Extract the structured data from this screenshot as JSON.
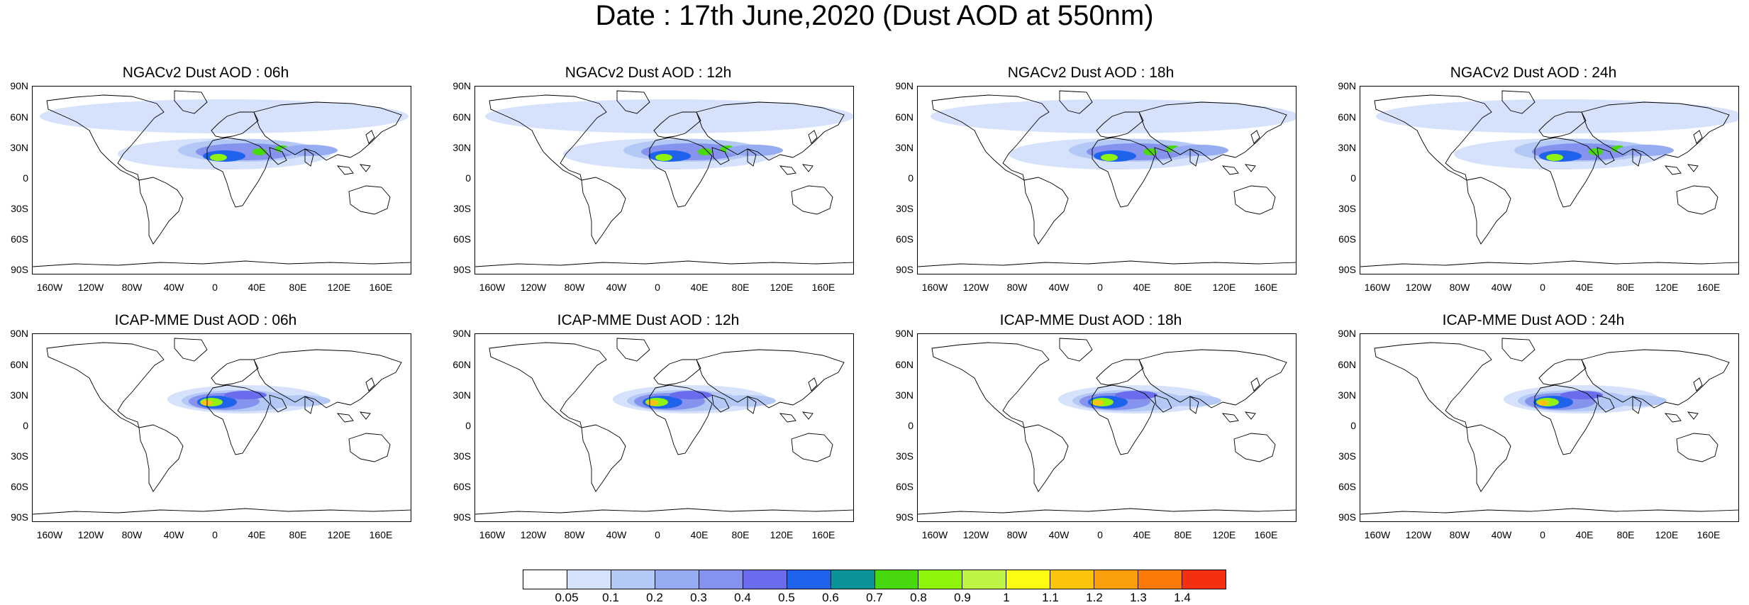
{
  "title": "Date : 17th June,2020 (Dust AOD at 550nm)",
  "panels": [
    {
      "title": "NGACv2 Dust AOD : 06h",
      "model": "NGACv2",
      "forecast_hour": "06h"
    },
    {
      "title": "NGACv2 Dust AOD : 12h",
      "model": "NGACv2",
      "forecast_hour": "12h"
    },
    {
      "title": "NGACv2 Dust AOD : 18h",
      "model": "NGACv2",
      "forecast_hour": "18h"
    },
    {
      "title": "NGACv2 Dust AOD : 24h",
      "model": "NGACv2",
      "forecast_hour": "24h"
    },
    {
      "title": "ICAP-MME Dust AOD : 06h",
      "model": "ICAP-MME",
      "forecast_hour": "06h"
    },
    {
      "title": "ICAP-MME Dust AOD : 12h",
      "model": "ICAP-MME",
      "forecast_hour": "12h"
    },
    {
      "title": "ICAP-MME Dust AOD : 18h",
      "model": "ICAP-MME",
      "forecast_hour": "18h"
    },
    {
      "title": "ICAP-MME Dust AOD : 24h",
      "model": "ICAP-MME",
      "forecast_hour": "24h"
    }
  ],
  "lat_ticks": [
    "90N",
    "60N",
    "30N",
    "0",
    "30S",
    "60S",
    "90S"
  ],
  "lon_ticks": [
    "160W",
    "120W",
    "80W",
    "40W",
    "0",
    "40E",
    "80E",
    "120E",
    "160E"
  ],
  "colorbar": {
    "levels": [
      "0.05",
      "0.1",
      "0.2",
      "0.3",
      "0.4",
      "0.5",
      "0.6",
      "0.7",
      "0.8",
      "0.9",
      "1",
      "1.1",
      "1.2",
      "1.3",
      "1.4"
    ],
    "colors": [
      "#ffffff",
      "#d6e2fb",
      "#b4c8f6",
      "#95acf2",
      "#8592ee",
      "#6a6ced",
      "#1f63ed",
      "#0b9498",
      "#48d80e",
      "#8ef40c",
      "#bff346",
      "#fdfb13",
      "#fcc30d",
      "#fb9e0c",
      "#fb7a08",
      "#f52f12"
    ]
  },
  "colors": {
    "ocean": "#ffffff",
    "coastline": "#000000",
    "light_dust": "#d6e2fb",
    "medium_dust": "#95acf2",
    "heavy_dust": "#6a6ced",
    "peak_dust": "#f52f12"
  }
}
